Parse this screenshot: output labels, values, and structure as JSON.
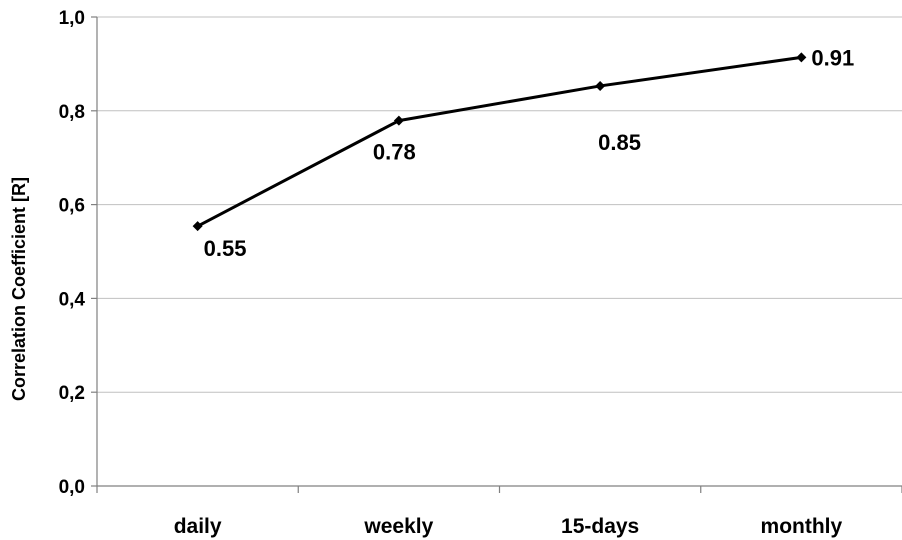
{
  "chart_data": {
    "type": "line",
    "title": "",
    "xlabel": "",
    "ylabel": "Correlation Coefficient [R]",
    "categories": [
      "daily",
      "weekly",
      "15-days",
      "monthly"
    ],
    "series": [
      {
        "values": [
          0.554,
          0.779,
          0.853,
          0.914
        ],
        "data_labels": [
          "0.55",
          "0.78",
          "0.85",
          "0.91"
        ],
        "marker": "diamond",
        "color": "#000000"
      }
    ],
    "ylim": [
      0,
      1
    ],
    "yticks": [
      0,
      0.2,
      0.4,
      0.6,
      0.8,
      1.0
    ],
    "ytick_labels": [
      "0,0",
      "0,2",
      "0,4",
      "0,6",
      "0,8",
      "1,0"
    ],
    "grid": "horizontal",
    "grid_color": "#c0c0c0",
    "legend": "none"
  }
}
